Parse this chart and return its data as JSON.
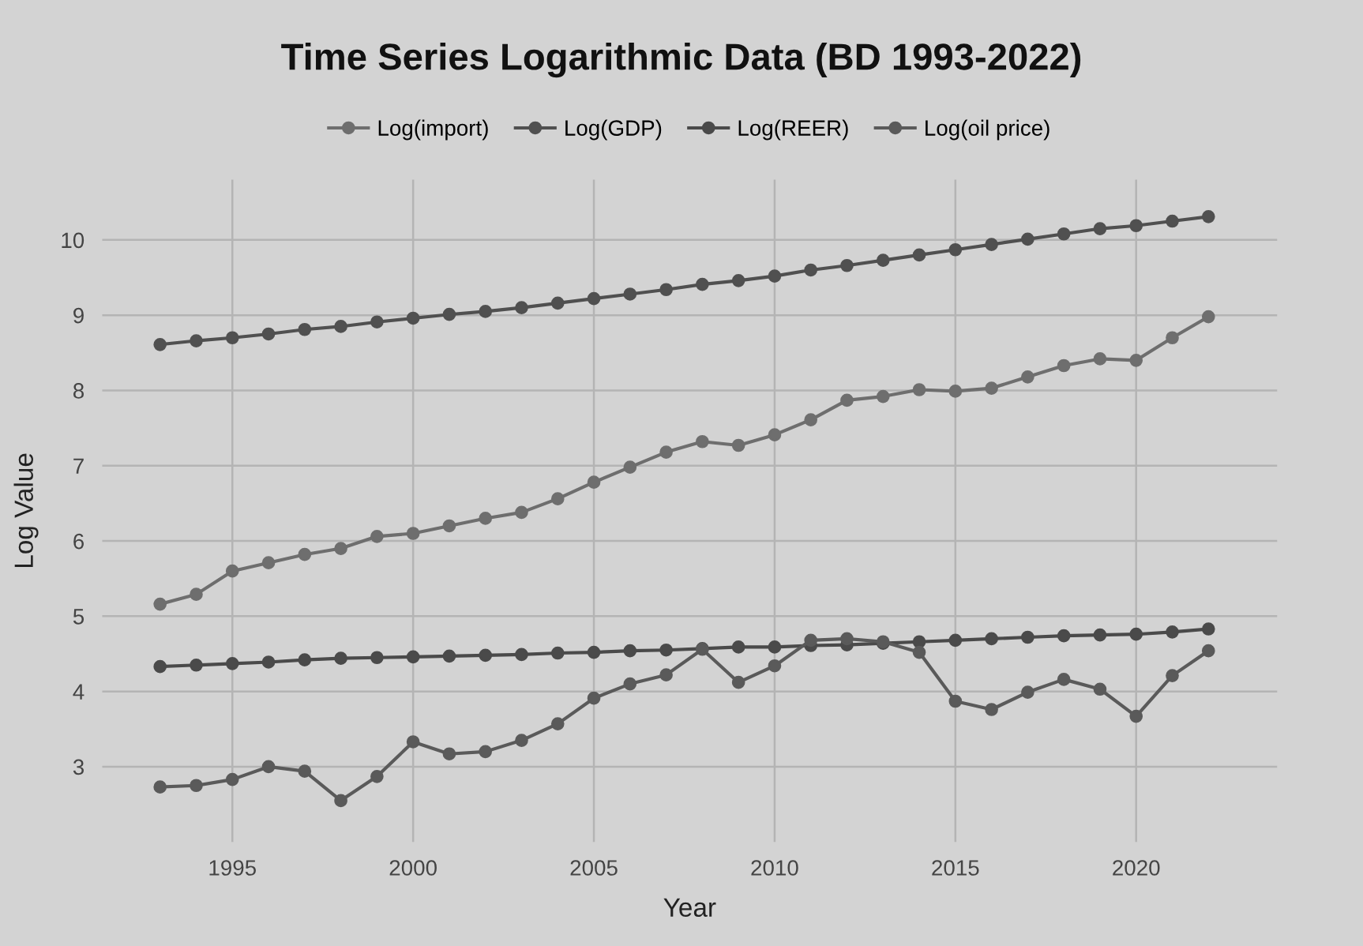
{
  "chart_data": {
    "type": "line",
    "title": "Time Series Logarithmic Data (BD 1993-2022)",
    "xlabel": "Year",
    "ylabel": "Log Value",
    "x": [
      1993,
      1994,
      1995,
      1996,
      1997,
      1998,
      1999,
      2000,
      2001,
      2002,
      2003,
      2004,
      2005,
      2006,
      2007,
      2008,
      2009,
      2010,
      2011,
      2012,
      2013,
      2014,
      2015,
      2016,
      2017,
      2018,
      2019,
      2020,
      2021,
      2022
    ],
    "series": [
      {
        "name": "Log(import)",
        "color": "#6e6e6e",
        "values": [
          5.16,
          5.29,
          5.6,
          5.71,
          5.82,
          5.9,
          6.06,
          6.1,
          6.2,
          6.3,
          6.38,
          6.56,
          6.78,
          6.98,
          7.18,
          7.32,
          7.27,
          7.41,
          7.61,
          7.87,
          7.92,
          8.01,
          7.99,
          8.03,
          8.18,
          8.33,
          8.42,
          8.4,
          8.7,
          8.98
        ]
      },
      {
        "name": "Log(GDP)",
        "color": "#505050",
        "values": [
          8.61,
          8.66,
          8.7,
          8.75,
          8.81,
          8.85,
          8.91,
          8.96,
          9.01,
          9.05,
          9.1,
          9.16,
          9.22,
          9.28,
          9.34,
          9.41,
          9.46,
          9.52,
          9.6,
          9.66,
          9.73,
          9.8,
          9.87,
          9.94,
          10.01,
          10.08,
          10.15,
          10.19,
          10.25,
          10.31
        ]
      },
      {
        "name": "Log(REER)",
        "color": "#4a4a4a",
        "values": [
          4.33,
          4.35,
          4.37,
          4.39,
          4.42,
          4.44,
          4.45,
          4.46,
          4.47,
          4.48,
          4.49,
          4.51,
          4.52,
          4.54,
          4.55,
          4.57,
          4.59,
          4.59,
          4.61,
          4.62,
          4.64,
          4.66,
          4.68,
          4.7,
          4.72,
          4.74,
          4.75,
          4.76,
          4.79,
          4.83
        ]
      },
      {
        "name": "Log(oil price)",
        "color": "#5a5a5a",
        "values": [
          2.73,
          2.75,
          2.83,
          3.0,
          2.94,
          2.55,
          2.87,
          3.33,
          3.17,
          3.2,
          3.35,
          3.57,
          3.91,
          4.1,
          4.22,
          4.56,
          4.12,
          4.34,
          4.68,
          4.7,
          4.66,
          4.52,
          3.87,
          3.76,
          3.99,
          4.16,
          4.03,
          3.67,
          4.21,
          4.54
        ]
      }
    ],
    "xlim": [
      1991.4,
      2023.9
    ],
    "xticks": [
      1995,
      2000,
      2005,
      2010,
      2015,
      2020
    ],
    "ylim": [
      2,
      10.8
    ],
    "yticks": [
      3,
      4,
      5,
      6,
      7,
      8,
      9,
      10
    ],
    "grid": true,
    "legend": "top",
    "marker": "circle",
    "line_style": "solid"
  }
}
